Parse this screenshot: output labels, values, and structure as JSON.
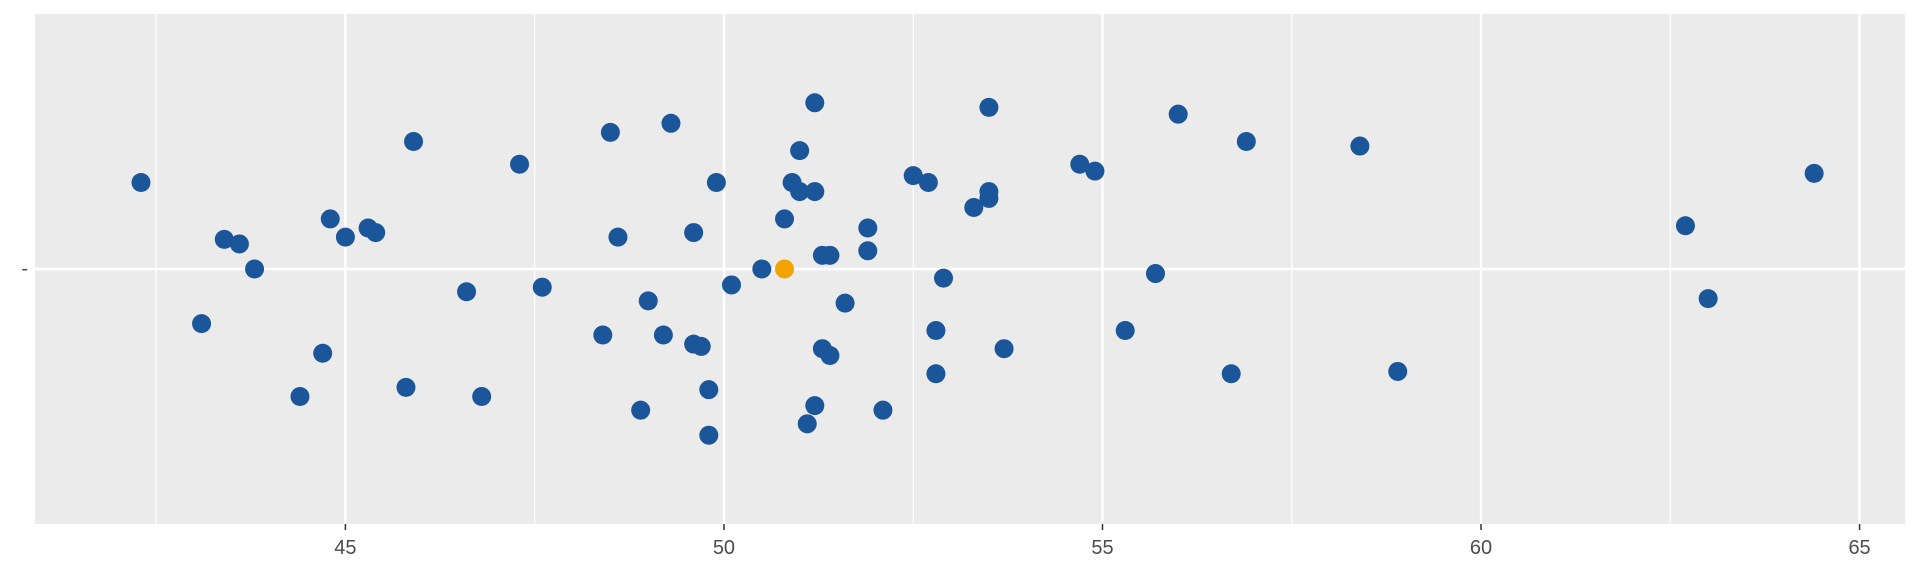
{
  "chart_data": {
    "type": "scatter",
    "title": "",
    "xlabel": "",
    "ylabel": "",
    "xlim": [
      40.9,
      65.6
    ],
    "ylim": [
      -1.12,
      1.12
    ],
    "x_ticks": [
      45,
      50,
      55,
      60,
      65
    ],
    "x_tick_labels": [
      "45",
      "50",
      "55",
      "60",
      "65"
    ],
    "x_minor_ticks": [
      42.5,
      47.5,
      52.5,
      57.5,
      62.5
    ],
    "y_ticks": [
      0
    ],
    "y_tick_labels": [
      "-"
    ],
    "grid": true,
    "panel_background": "#ebebeb",
    "grid_color": "#ffffff",
    "colors": {
      "points": "#1a5699",
      "highlight": "#f5a300"
    },
    "series": [
      {
        "values": [
          [
            42.3,
            0.38
          ],
          [
            43.1,
            -0.24
          ],
          [
            43.4,
            0.13
          ],
          [
            43.6,
            0.11
          ],
          [
            43.8,
            0.0
          ],
          [
            44.4,
            -0.56
          ],
          [
            44.7,
            -0.37
          ],
          [
            44.8,
            0.22
          ],
          [
            45.0,
            0.14
          ],
          [
            45.3,
            0.18
          ],
          [
            45.4,
            0.16
          ],
          [
            45.8,
            -0.52
          ],
          [
            45.9,
            0.56
          ],
          [
            46.6,
            -0.1
          ],
          [
            46.8,
            -0.56
          ],
          [
            47.3,
            0.46
          ],
          [
            47.6,
            -0.08
          ],
          [
            48.4,
            -0.29
          ],
          [
            48.5,
            0.6
          ],
          [
            48.6,
            0.14
          ],
          [
            48.9,
            -0.62
          ],
          [
            49.0,
            -0.14
          ],
          [
            49.2,
            -0.29
          ],
          [
            49.3,
            0.64
          ],
          [
            49.6,
            0.16
          ],
          [
            49.6,
            -0.33
          ],
          [
            49.7,
            -0.34
          ],
          [
            49.8,
            -0.53
          ],
          [
            49.8,
            -0.73
          ],
          [
            49.9,
            0.38
          ],
          [
            50.1,
            -0.07
          ],
          [
            50.5,
            0.0
          ],
          [
            50.8,
            0.22
          ],
          [
            50.9,
            0.38
          ],
          [
            51.0,
            0.34
          ],
          [
            51.0,
            0.52
          ],
          [
            51.1,
            -0.68
          ],
          [
            51.2,
            0.34
          ],
          [
            51.2,
            -0.6
          ],
          [
            51.2,
            0.73
          ],
          [
            51.3,
            0.06
          ],
          [
            51.3,
            -0.35
          ],
          [
            51.4,
            0.06
          ],
          [
            51.4,
            -0.38
          ],
          [
            51.6,
            -0.15
          ],
          [
            52.1,
            -0.62
          ],
          [
            51.9,
            0.18
          ],
          [
            51.9,
            0.08
          ],
          [
            52.5,
            0.41
          ],
          [
            52.7,
            0.38
          ],
          [
            52.8,
            -0.27
          ],
          [
            52.8,
            -0.46
          ],
          [
            52.9,
            -0.04
          ],
          [
            53.3,
            0.27
          ],
          [
            53.5,
            0.34
          ],
          [
            53.5,
            0.31
          ],
          [
            53.5,
            0.71
          ],
          [
            53.7,
            -0.35
          ],
          [
            54.7,
            0.46
          ],
          [
            54.9,
            0.43
          ],
          [
            55.3,
            -0.27
          ],
          [
            55.7,
            -0.02
          ],
          [
            56.0,
            0.68
          ],
          [
            56.7,
            -0.46
          ],
          [
            56.9,
            0.56
          ],
          [
            58.4,
            0.54
          ],
          [
            58.9,
            -0.45
          ],
          [
            62.7,
            0.19
          ],
          [
            63.0,
            -0.13
          ],
          [
            64.4,
            0.42
          ]
        ]
      },
      {
        "values": [
          [
            50.8,
            0.0
          ]
        ]
      }
    ]
  }
}
